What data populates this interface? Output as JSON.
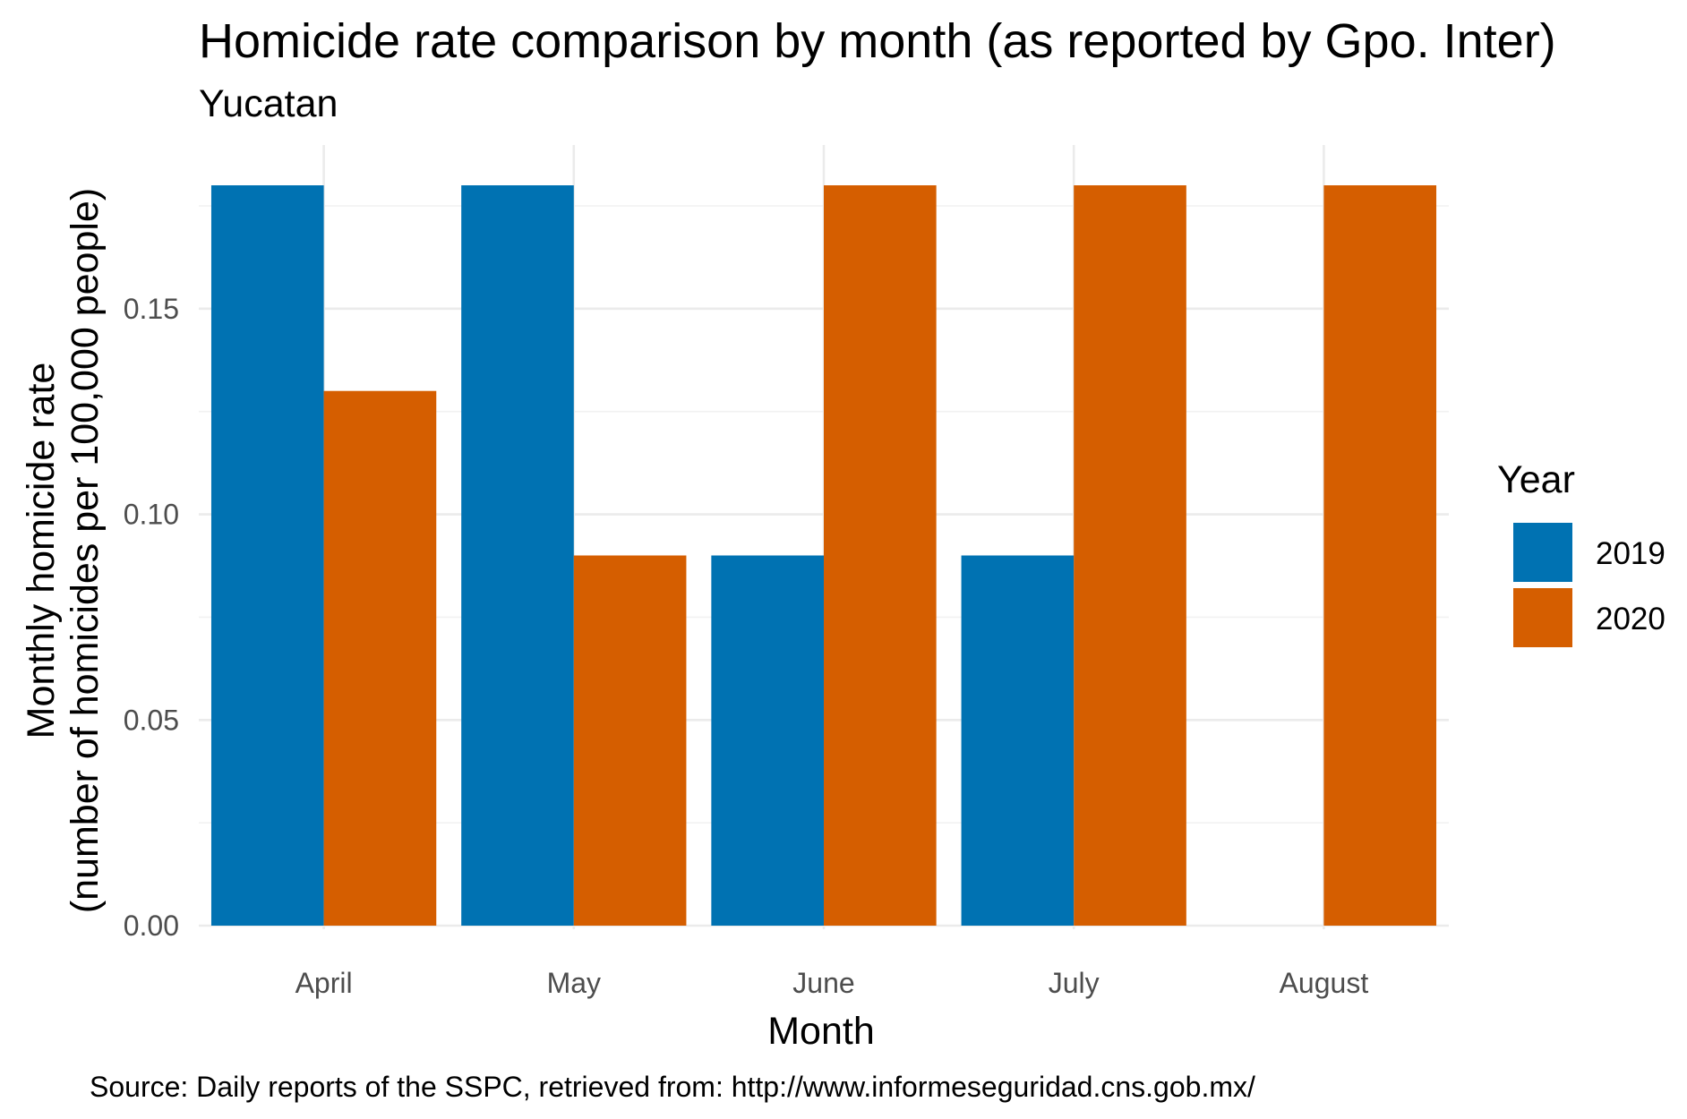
{
  "chart_data": {
    "type": "bar",
    "title": "Homicide rate comparison by month (as reported by Gpo. Inter)",
    "subtitle": "Yucatan",
    "xlabel": "Month",
    "ylabel_line1": "Monthly homicide rate",
    "ylabel_line2": "(number of homicides per 100,000 people)",
    "caption": "Source: Daily reports of the SSPC, retrieved from: http://www.informeseguridad.cns.gob.mx/",
    "categories": [
      "April",
      "May",
      "June",
      "July",
      "August"
    ],
    "series": [
      {
        "name": "2019",
        "color": "#0072B2",
        "values": [
          0.18,
          0.18,
          0.09,
          0.09,
          null
        ]
      },
      {
        "name": "2020",
        "color": "#D55E00",
        "values": [
          0.13,
          0.09,
          0.18,
          0.18,
          0.18
        ]
      }
    ],
    "ylim": [
      0,
      0.18
    ],
    "yticks": [
      "0.00",
      "0.05",
      "0.10",
      "0.15"
    ],
    "grid": true,
    "legend": {
      "title": "Year",
      "position": "right"
    }
  }
}
